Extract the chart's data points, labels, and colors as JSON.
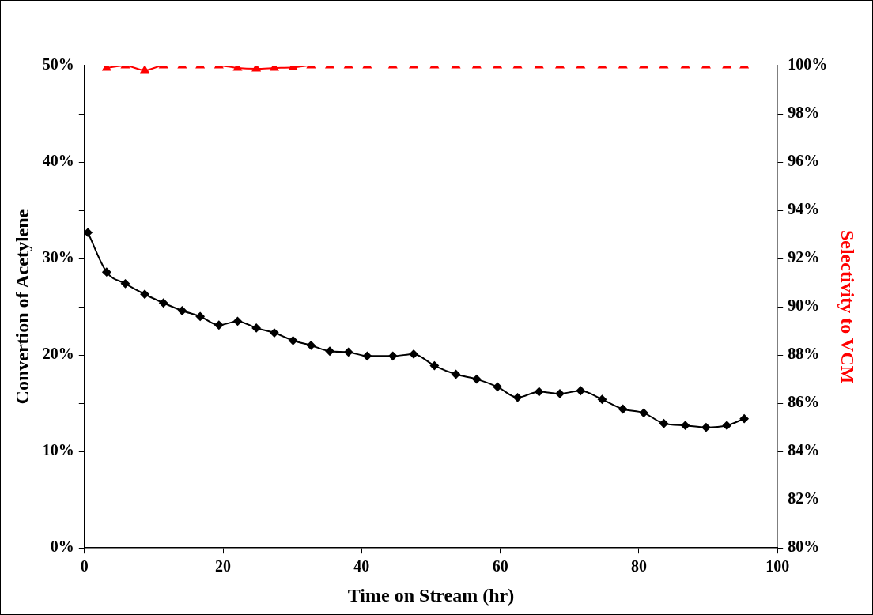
{
  "chart_data": {
    "type": "line",
    "xlabel": "Time on Stream (hr)",
    "ylabel": "Convertion of Acetylene",
    "y2label": "Selectivity to VCM",
    "xlim": [
      0,
      100
    ],
    "xticks": [
      0,
      20,
      40,
      60,
      80,
      100
    ],
    "ylim": [
      0,
      50
    ],
    "yticks": [
      {
        "value": 0,
        "label": "0%"
      },
      {
        "value": 5,
        "label": null
      },
      {
        "value": 10,
        "label": "10%"
      },
      {
        "value": 15,
        "label": null
      },
      {
        "value": 20,
        "label": "20%"
      },
      {
        "value": 25,
        "label": null
      },
      {
        "value": 30,
        "label": "30%"
      },
      {
        "value": 35,
        "label": null
      },
      {
        "value": 40,
        "label": "40%"
      },
      {
        "value": 45,
        "label": null
      },
      {
        "value": 50,
        "label": "50%"
      }
    ],
    "y2lim": [
      80,
      100
    ],
    "y2ticks": [
      {
        "value": 80,
        "label": "80%"
      },
      {
        "value": 82,
        "label": "82%"
      },
      {
        "value": 84,
        "label": "84%"
      },
      {
        "value": 86,
        "label": "86%"
      },
      {
        "value": 88,
        "label": "88%"
      },
      {
        "value": 90,
        "label": "90%"
      },
      {
        "value": 92,
        "label": "92%"
      },
      {
        "value": 94,
        "label": "94%"
      },
      {
        "value": 96,
        "label": "96%"
      },
      {
        "value": 98,
        "label": "98%"
      },
      {
        "value": 100,
        "label": "100%"
      }
    ],
    "grid": false,
    "legend": false,
    "line_style": "solid",
    "series": [
      {
        "color": "#000000",
        "marker": "diamond",
        "x": [
          0.5,
          3.2,
          5.9,
          8.7,
          11.4,
          14.1,
          16.7,
          19.4,
          22.1,
          24.8,
          27.4,
          30.1,
          32.7,
          35.4,
          38.1,
          40.8,
          44.5,
          47.5,
          50.5,
          53.6,
          56.6,
          59.6,
          62.5,
          65.6,
          68.6,
          71.6,
          74.7,
          77.7,
          80.7,
          83.6,
          86.7,
          89.7,
          92.7,
          95.2
        ],
        "values": [
          32.7,
          28.6,
          27.4,
          26.3,
          25.4,
          24.6,
          24.0,
          23.1,
          23.5,
          22.8,
          22.3,
          21.5,
          21.0,
          20.4,
          20.3,
          19.9,
          19.9,
          20.1,
          18.9,
          18.0,
          17.5,
          16.7,
          15.6,
          16.2,
          16.0,
          16.3,
          15.4,
          14.4,
          14.0,
          12.9,
          12.7,
          12.5,
          12.7,
          13.4
        ]
      },
      {
        "color": "#ff0000",
        "marker": "triangle",
        "axis": "y2",
        "x": [
          3.2,
          5.9,
          8.7,
          11.4,
          14.1,
          16.7,
          19.4,
          22.1,
          24.8,
          27.4,
          30.1,
          32.7,
          35.4,
          38.1,
          40.8,
          44.5,
          47.5,
          50.5,
          53.6,
          56.6,
          59.6,
          62.5,
          65.6,
          68.6,
          71.6,
          74.7,
          77.7,
          80.7,
          83.6,
          86.7,
          89.7,
          92.7,
          95.2
        ],
        "values": [
          99.9,
          100,
          99.8,
          100,
          100,
          100,
          100,
          99.9,
          99.87,
          99.9,
          99.93,
          100,
          100,
          100,
          100,
          100,
          100,
          100,
          100,
          100,
          100,
          100,
          100,
          100,
          100,
          100,
          100,
          100,
          100,
          100,
          100,
          100,
          100
        ]
      }
    ]
  }
}
